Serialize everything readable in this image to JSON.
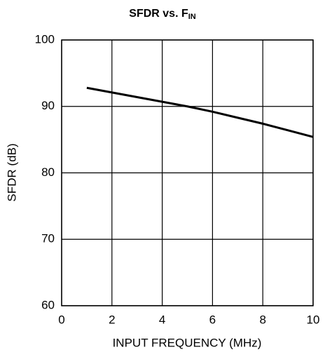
{
  "chart_data": {
    "type": "line",
    "title": "SFDR vs. F",
    "title_subscript": "IN",
    "x_label": "INPUT FREQUENCY (MHz)",
    "y_label": "SFDR (dB)",
    "x": [
      1,
      2,
      3,
      4,
      5,
      6,
      7,
      8,
      9,
      10
    ],
    "series": [
      {
        "name": "SFDR",
        "color": "#000000",
        "values": [
          92.8,
          92.1,
          91.4,
          90.7,
          90.0,
          89.2,
          88.3,
          87.4,
          86.4,
          85.4
        ]
      }
    ],
    "xlim": [
      0,
      10
    ],
    "xticks": [
      0,
      2,
      4,
      6,
      8,
      10
    ],
    "ylim": [
      60,
      100
    ],
    "yticks": [
      60,
      70,
      80,
      90,
      100
    ],
    "grid": true
  }
}
